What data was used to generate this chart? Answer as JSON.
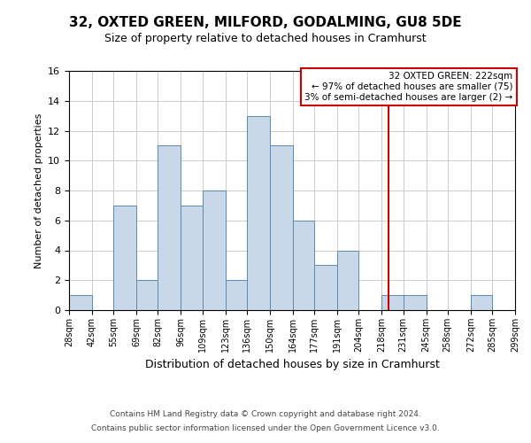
{
  "title": "32, OXTED GREEN, MILFORD, GODALMING, GU8 5DE",
  "subtitle": "Size of property relative to detached houses in Cramhurst",
  "xlabel": "Distribution of detached houses by size in Cramhurst",
  "ylabel": "Number of detached properties",
  "bar_color": "#c8d8e8",
  "bar_edge_color": "#5a8ab0",
  "bin_edges": [
    28,
    42,
    55,
    69,
    82,
    96,
    109,
    123,
    136,
    150,
    164,
    177,
    191,
    204,
    218,
    231,
    245,
    258,
    272,
    285,
    299
  ],
  "bar_heights": [
    1,
    0,
    7,
    2,
    11,
    7,
    8,
    2,
    13,
    11,
    6,
    3,
    4,
    0,
    1,
    1,
    0,
    0,
    1,
    0
  ],
  "tick_labels": [
    "28sqm",
    "42sqm",
    "55sqm",
    "69sqm",
    "82sqm",
    "96sqm",
    "109sqm",
    "123sqm",
    "136sqm",
    "150sqm",
    "164sqm",
    "177sqm",
    "191sqm",
    "204sqm",
    "218sqm",
    "231sqm",
    "245sqm",
    "258sqm",
    "272sqm",
    "285sqm",
    "299sqm"
  ],
  "ylim": [
    0,
    16
  ],
  "yticks": [
    0,
    2,
    4,
    6,
    8,
    10,
    12,
    14,
    16
  ],
  "vline_x": 222,
  "vline_color": "#cc0000",
  "annotation_title": "32 OXTED GREEN: 222sqm",
  "annotation_line1": "← 97% of detached houses are smaller (75)",
  "annotation_line2": "3% of semi-detached houses are larger (2) →",
  "annotation_box_color": "#ffffff",
  "annotation_box_edge_color": "#cc0000",
  "footer1": "Contains HM Land Registry data © Crown copyright and database right 2024.",
  "footer2": "Contains public sector information licensed under the Open Government Licence v3.0.",
  "background_color": "#ffffff",
  "grid_color": "#cccccc"
}
